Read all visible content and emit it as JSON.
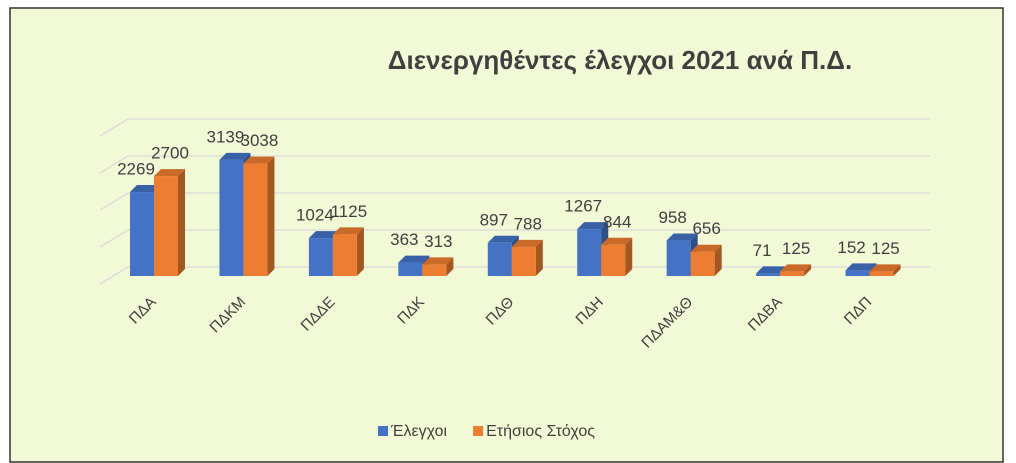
{
  "chart_data": {
    "type": "bar3d",
    "title": "Διενεργηθέντες έλεγχοι  2021 ανά Π.Δ.",
    "categories": [
      "ΠΔΑ",
      "ΠΔΚΜ",
      "ΠΔΔΕ",
      "ΠΔΚ",
      "ΠΔΘ",
      "ΠΔΗ",
      "ΠΔΑΜ&Θ",
      "ΠΔΒΑ",
      "ΠΔΠ"
    ],
    "series": [
      {
        "name": "Έλεγχοι",
        "color": "#4472c4",
        "values": [
          2269,
          3139,
          1024,
          363,
          897,
          1267,
          958,
          71,
          152
        ]
      },
      {
        "name": "Ετήσιος Στόχος",
        "color": "#ed7d31",
        "values": [
          2700,
          3038,
          1125,
          313,
          788,
          844,
          656,
          125,
          125
        ]
      }
    ],
    "ylim": [
      0,
      4000
    ],
    "yticks": [
      0,
      1000,
      2000,
      3000,
      4000
    ],
    "grid": true,
    "legend": "bottom"
  }
}
